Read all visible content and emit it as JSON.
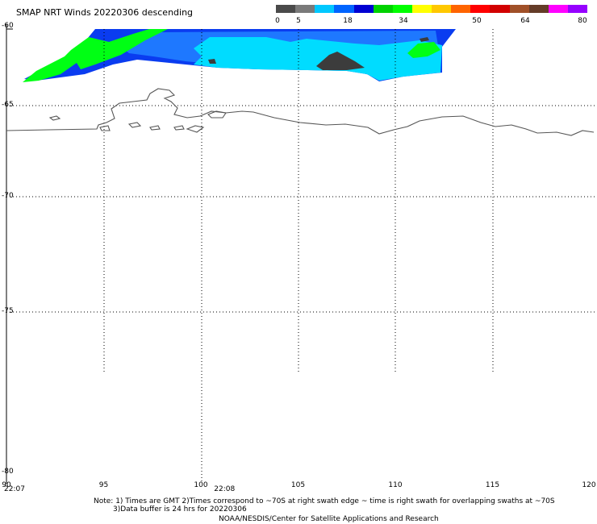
{
  "header": {
    "title": "SMAP NRT Winds  20220306 descending"
  },
  "colorbar": {
    "segments": [
      "#4a4a4a",
      "#7a7a7a",
      "#00c8ff",
      "#0064ff",
      "#0000d2",
      "#00d200",
      "#00ff00",
      "#ffff00",
      "#ffc800",
      "#ff6400",
      "#ff0000",
      "#d20000",
      "#a05028",
      "#643c28",
      "#ff00ff",
      "#9600ff"
    ],
    "labels": [
      {
        "text": "0",
        "value": 0
      },
      {
        "text": "5",
        "value": 5
      },
      {
        "text": "18",
        "value": 18
      },
      {
        "text": "34",
        "value": 34
      },
      {
        "text": "50",
        "value": 50
      },
      {
        "text": "64",
        "value": 64
      },
      {
        "text": "80",
        "value": 80
      }
    ]
  },
  "axes": {
    "lat_labels": [
      {
        "text": "-60",
        "value": -60
      },
      {
        "text": "-65",
        "value": -65
      },
      {
        "text": "-70",
        "value": -70
      },
      {
        "text": "-75",
        "value": -75
      },
      {
        "text": "-80",
        "value": -80
      }
    ],
    "lon_labels": [
      {
        "text": "90",
        "value": 90
      },
      {
        "text": "95",
        "value": 95
      },
      {
        "text": "100",
        "value": 100
      },
      {
        "text": "105",
        "value": 105
      },
      {
        "text": "110",
        "value": 110
      },
      {
        "text": "115",
        "value": 115
      },
      {
        "text": "120",
        "value": 120
      }
    ],
    "time_labels": [
      {
        "text": "22:07",
        "lon": 90
      },
      {
        "text": "22:08",
        "lon": 100.8
      }
    ]
  },
  "footer": {
    "note_line1": "Note: 1) Times are GMT 2)Times correspond to ~70S at right swath edge ~ time is right swath for overlapping swaths at ~70S",
    "note_line2": "3)Data buffer is 24 hrs for 20220306",
    "credit": "NOAA/NESDIS/Center for Satellite Applications and Research"
  }
}
